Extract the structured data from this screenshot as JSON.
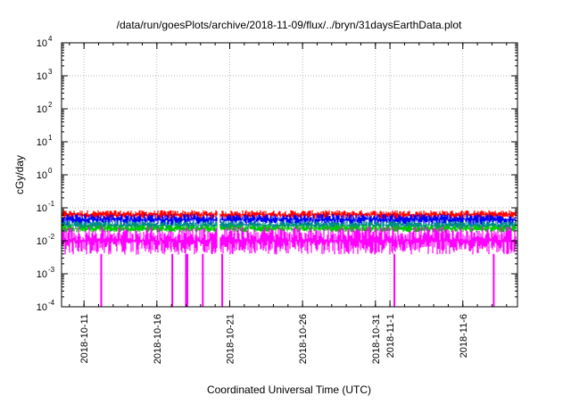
{
  "chart_data": {
    "type": "line",
    "title": "/data/run/goesPlots/archive/2018-11-09/flux/../bryn/31daysEarthData.plot",
    "xlabel": "Coordinated Universal Time (UTC)",
    "ylabel": "cGy/day",
    "yscale": "log",
    "ylim": [
      0.0001,
      10000
    ],
    "xlim": [
      "2018-10-09T11:00",
      "2018-11-09T18:00"
    ],
    "grid": true,
    "y_ticks": [
      {
        "base": "10",
        "exp": "-4",
        "value": 0.0001
      },
      {
        "base": "10",
        "exp": "-3",
        "value": 0.001
      },
      {
        "base": "10",
        "exp": "-2",
        "value": 0.01
      },
      {
        "base": "10",
        "exp": "-1",
        "value": 0.1
      },
      {
        "base": "10",
        "exp": "0",
        "value": 1
      },
      {
        "base": "10",
        "exp": "1",
        "value": 10
      },
      {
        "base": "10",
        "exp": "2",
        "value": 100
      },
      {
        "base": "10",
        "exp": "3",
        "value": 1000
      },
      {
        "base": "10",
        "exp": "4",
        "value": 10000
      }
    ],
    "x_ticks": [
      {
        "label": "2018-10-11",
        "date": "2018-10-11"
      },
      {
        "label": "2018-10-16",
        "date": "2018-10-16"
      },
      {
        "label": "2018-10-21",
        "date": "2018-10-21"
      },
      {
        "label": "2018-10-26",
        "date": "2018-10-26"
      },
      {
        "label": "2018-10-31",
        "date": "2018-10-31"
      },
      {
        "label": "2018-11-1",
        "date": "2018-11-01"
      },
      {
        "label": "2018-11-6",
        "date": "2018-11-06"
      }
    ],
    "series": [
      {
        "color": "#ff0000",
        "min": 0.045,
        "max": 0.085
      },
      {
        "color": "#0000ff",
        "min": 0.03,
        "max": 0.065
      },
      {
        "color": "#008b8b",
        "min": 0.022,
        "max": 0.04
      },
      {
        "color": "#00c800",
        "min": 0.018,
        "max": 0.03
      },
      {
        "color": "#ff00ff",
        "min": 0.0038,
        "max": 0.027
      }
    ],
    "dropouts": [
      "2018-10-12",
      "2018-10-17",
      "2018-10-18",
      "2018-10-18",
      "2018-10-19",
      "2018-10-20",
      "2018-11-01",
      "2018-11-08"
    ],
    "data_gap": "2018-10-20"
  }
}
